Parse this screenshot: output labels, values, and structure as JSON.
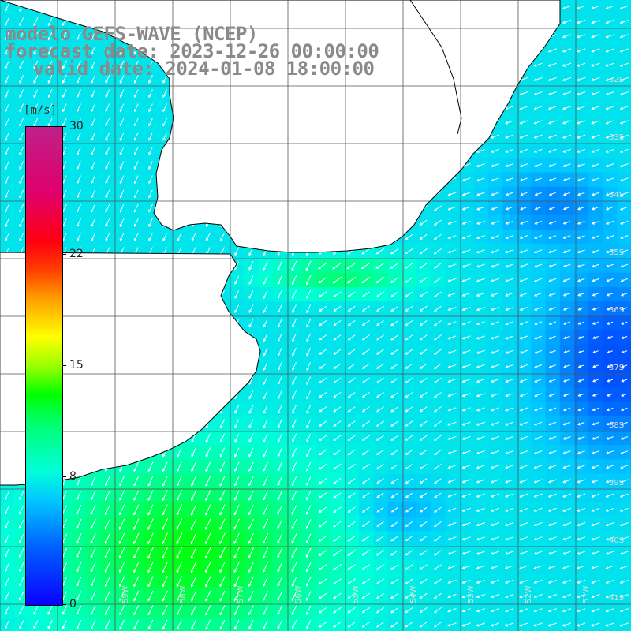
{
  "title": {
    "line1": "modelo GEFS-WAVE (NCEP)",
    "line2": "forecast date: 2023-12-26 00:00:00",
    "line3": "valid date: 2024-01-08 18:00:00"
  },
  "colorbar": {
    "unit": "[m/s]",
    "min": 0,
    "max": 30,
    "ticks": [
      "30",
      "22",
      "15",
      "8",
      "0"
    ],
    "tick_values": [
      30,
      22,
      15,
      8,
      0
    ]
  },
  "lat_labels": [
    "32S",
    "33S",
    "34S",
    "35S",
    "36S",
    "37S",
    "38S",
    "39S",
    "40S",
    "41S"
  ],
  "lon_labels": [
    "59W",
    "58W",
    "57W",
    "56W",
    "55W",
    "54W",
    "53W",
    "52W",
    "51W"
  ],
  "colors": {
    "land": "#ffffff",
    "coast": "#000000",
    "grid": "#555555",
    "arrow": "#ffffff",
    "title": "#8a8a8a"
  },
  "map_extent": {
    "lon_min": -60,
    "lon_max": -50.5,
    "lat_min": -41.5,
    "lat_max": -31.8
  }
}
